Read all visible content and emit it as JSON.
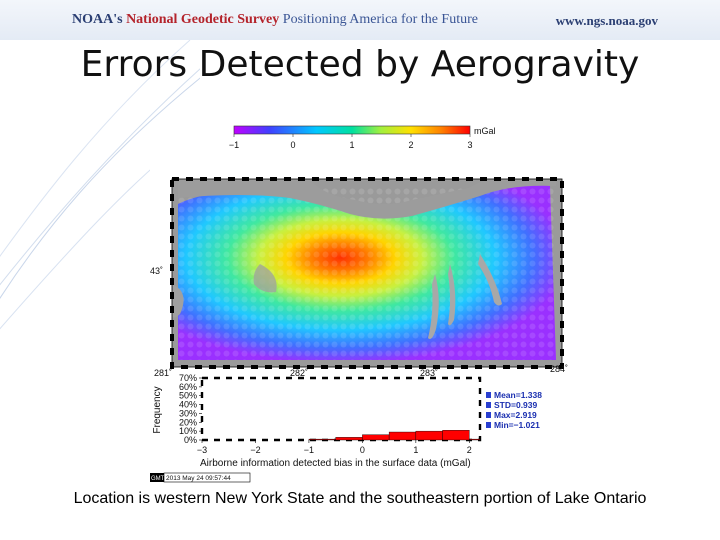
{
  "header": {
    "agency": "NOAA's",
    "survey": "National Geodetic Survey",
    "slogan": "Positioning America for the Future",
    "url": "www.ngs.noaa.gov"
  },
  "title": "Errors Detected by Aerogravity",
  "map": {
    "colorbar_unit": "mGal",
    "colorbar_ticks": [
      "−1",
      "0",
      "1",
      "2",
      "3"
    ],
    "colorbar_range": [
      -1,
      3
    ],
    "lat_label": "43˚",
    "lon_labels": [
      "281˚",
      "282˚",
      "283˚",
      "284˚"
    ]
  },
  "chart_data": {
    "type": "bar",
    "ylabel": "Frequency",
    "xlabel": "Airborne information detected bias in the surface data (mGal)",
    "x_ticks": [
      "−3",
      "−2",
      "−1",
      "0",
      "1",
      "2"
    ],
    "y_ticks": [
      "0%",
      "10%",
      "20%",
      "30%",
      "40%",
      "50%",
      "60%",
      "70%"
    ],
    "xlim": [
      -3,
      2.2
    ],
    "ylim": [
      0,
      70
    ],
    "bins": [
      {
        "from": -1.0,
        "to": -0.5,
        "value": 1
      },
      {
        "from": -0.5,
        "to": 0.0,
        "value": 3
      },
      {
        "from": 0.0,
        "to": 0.5,
        "value": 6
      },
      {
        "from": 0.5,
        "to": 1.0,
        "value": 9
      },
      {
        "from": 1.0,
        "to": 1.5,
        "value": 10
      },
      {
        "from": 1.5,
        "to": 2.0,
        "value": 11
      },
      {
        "from": 2.0,
        "to": 2.2,
        "value": 1
      }
    ],
    "bar_color": "#ff0000",
    "stats": [
      "Mean=1.338",
      "STD=0.939",
      "Max=2.919",
      "Min=−1.021"
    ]
  },
  "gmt_stamp": {
    "logo": "GMT",
    "date": "2013 May 24 09:57:44"
  },
  "caption": "Location is western New York State and the southeastern portion of Lake Ontario"
}
